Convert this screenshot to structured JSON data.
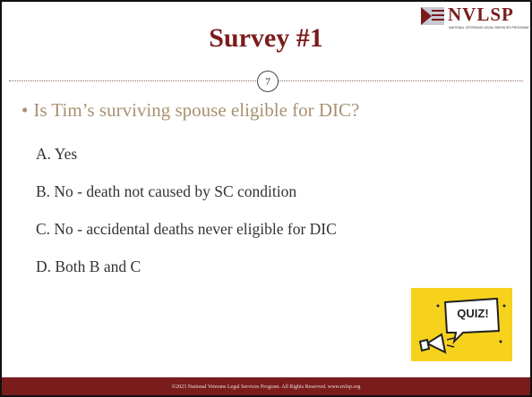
{
  "header": {
    "title": "Survey #1",
    "slide_number": "7",
    "logo": {
      "name": "NVLSP",
      "tagline": "NATIONAL VETERANS LEGAL SERVICES PROGRAM"
    }
  },
  "question": "Is Tim’s surviving spouse eligible for DIC?",
  "options": [
    "A. Yes",
    "B. No - death not caused by SC condition",
    "C. No - accidental deaths never eligible for DIC",
    "D. Both B and C"
  ],
  "image": {
    "label": "QUIZ!"
  },
  "footer": "©2023 National Veterans Legal Services Program. All Rights Reserved.  www.nvlsp.org"
}
